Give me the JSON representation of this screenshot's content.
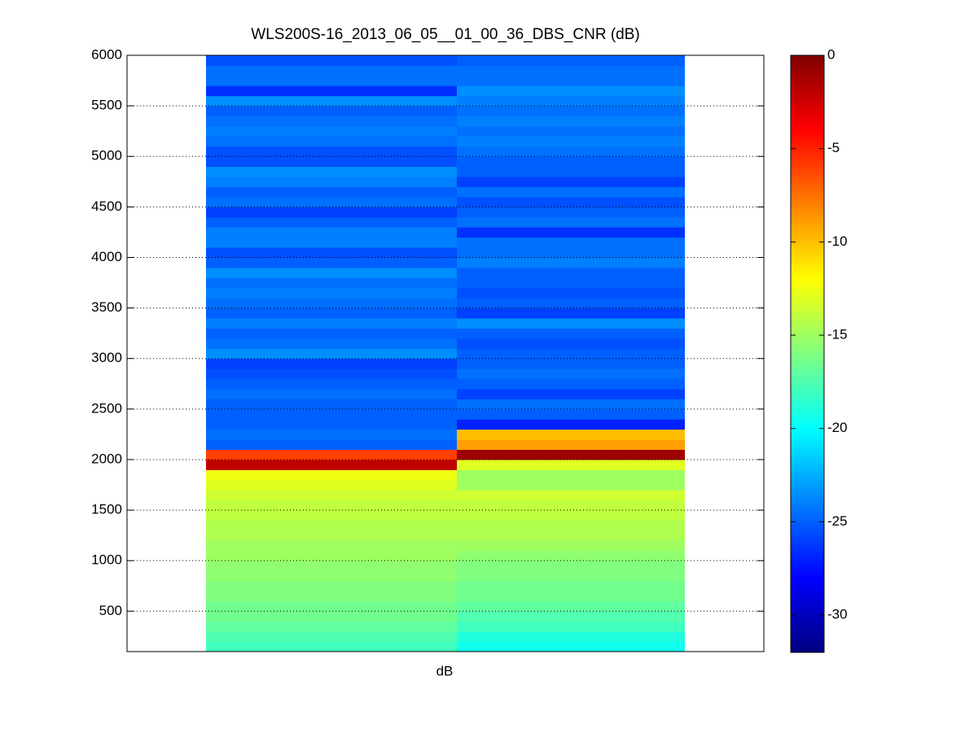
{
  "chart_data": {
    "type": "heatmap",
    "title": "WLS200S-16_2013_06_05__01_00_36_DBS_CNR (dB)",
    "x_label": "dB",
    "y_edges": [
      100,
      200,
      300,
      400,
      500,
      600,
      700,
      800,
      900,
      1000,
      1100,
      1200,
      1300,
      1400,
      1500,
      1600,
      1700,
      1800,
      1900,
      2000,
      2100,
      2200,
      2300,
      2400,
      2500,
      2600,
      2700,
      2800,
      2900,
      3000,
      3100,
      3200,
      3300,
      3400,
      3500,
      3600,
      3700,
      3800,
      3900,
      4000,
      4100,
      4200,
      4300,
      4400,
      4500,
      4600,
      4700,
      4800,
      4900,
      5000,
      5100,
      5200,
      5300,
      5400,
      5500,
      5600,
      5700,
      5800,
      5900,
      6000
    ],
    "columns": [
      {
        "values": [
          -18,
          -17.5,
          -17,
          -16.5,
          -16.5,
          -16,
          -16,
          -15.5,
          -15.5,
          -15,
          -15,
          -14.5,
          -14.5,
          -14,
          -14,
          -13.5,
          -13,
          -12.5,
          -2,
          -6,
          -25,
          -24.5,
          -25,
          -25,
          -25,
          -24.5,
          -25,
          -25.5,
          -26,
          -23.5,
          -24.5,
          -25,
          -24,
          -25,
          -24.5,
          -24,
          -24.5,
          -23.5,
          -25,
          -25.5,
          -24,
          -24,
          -25,
          -26,
          -24.5,
          -25,
          -24,
          -23.5,
          -25.5,
          -25.5,
          -24.5,
          -24,
          -24.5,
          -25,
          -23.5,
          -26.5,
          -24.5,
          -24.5,
          -25.5
        ]
      },
      {
        "values": [
          -19.5,
          -19,
          -18,
          -17.5,
          -17,
          -16.5,
          -16.5,
          -16,
          -16,
          -15.5,
          -15,
          -14.5,
          -14.5,
          -14,
          -14,
          -13.5,
          -15,
          -15,
          -13,
          -1,
          -9,
          -10,
          -27,
          -25,
          -24.5,
          -26,
          -25,
          -24.5,
          -25,
          -25,
          -25.5,
          -25,
          -23.5,
          -26,
          -25,
          -25.5,
          -25,
          -25,
          -24,
          -24.5,
          -24.5,
          -26.5,
          -24.5,
          -25,
          -25.5,
          -24.5,
          -26,
          -25,
          -25,
          -24.5,
          -24,
          -24.5,
          -24,
          -24.5,
          -24,
          -23.5,
          -24.5,
          -24.5,
          -25
        ]
      }
    ],
    "ylim": [
      100,
      6000
    ],
    "yticks": [
      500,
      1000,
      1500,
      2000,
      2500,
      3000,
      3500,
      4000,
      4500,
      5000,
      5500,
      6000
    ],
    "grid": true,
    "colormap": "jet",
    "clim": [
      -32,
      0
    ],
    "cticks": [
      0,
      -5,
      -10,
      -15,
      -20,
      -25,
      -30
    ]
  }
}
